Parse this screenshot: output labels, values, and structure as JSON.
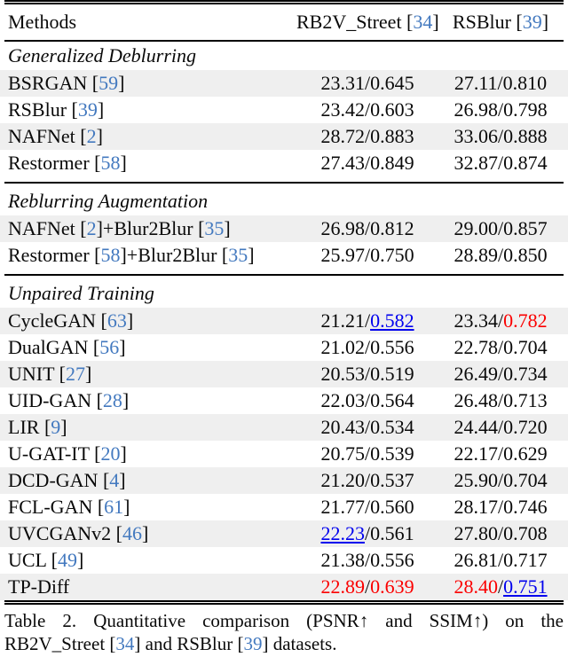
{
  "header": {
    "methods_label": "Methods",
    "dataset1_label": "RB2V_Street [34]",
    "dataset2_label": "RSBlur [39]"
  },
  "rows": [
    {
      "type": "section",
      "label": "Generalized Deblurring"
    },
    {
      "type": "data",
      "method": "BSRGAN [59]",
      "shaded": true,
      "rb2v": {
        "psnr": "23.31",
        "ssim": "0.645"
      },
      "rsblur": {
        "psnr": "27.11",
        "ssim": "0.810"
      }
    },
    {
      "type": "data",
      "method": "RSBlur [39]",
      "shaded": false,
      "rb2v": {
        "psnr": "23.42",
        "ssim": "0.603"
      },
      "rsblur": {
        "psnr": "26.98",
        "ssim": "0.798"
      }
    },
    {
      "type": "data",
      "method": "NAFNet [2]",
      "shaded": true,
      "rb2v": {
        "psnr": "28.72",
        "ssim": "0.883"
      },
      "rsblur": {
        "psnr": "33.06",
        "ssim": "0.888"
      }
    },
    {
      "type": "data",
      "method": "Restormer [58]",
      "shaded": false,
      "rb2v": {
        "psnr": "27.43",
        "ssim": "0.849"
      },
      "rsblur": {
        "psnr": "32.87",
        "ssim": "0.874"
      }
    },
    {
      "type": "rule"
    },
    {
      "type": "section",
      "label": "Reblurring Augmentation"
    },
    {
      "type": "data",
      "method": "NAFNet [2]+Blur2Blur [35]",
      "shaded": true,
      "rb2v": {
        "psnr": "26.98",
        "ssim": "0.812"
      },
      "rsblur": {
        "psnr": "29.00",
        "ssim": "0.857"
      }
    },
    {
      "type": "data",
      "method": "Restormer [58]+Blur2Blur [35]",
      "shaded": false,
      "rb2v": {
        "psnr": "25.97",
        "ssim": "0.750"
      },
      "rsblur": {
        "psnr": "28.89",
        "ssim": "0.850"
      }
    },
    {
      "type": "rule"
    },
    {
      "type": "section",
      "label": "Unpaired Training"
    },
    {
      "type": "data",
      "method": "CycleGAN [63]",
      "shaded": true,
      "rb2v": {
        "psnr": "21.21",
        "ssim": "0.582",
        "ssim_style": "blue"
      },
      "rsblur": {
        "psnr": "23.34",
        "ssim": "0.782",
        "ssim_style": "red"
      }
    },
    {
      "type": "data",
      "method": "DualGAN [56]",
      "shaded": false,
      "rb2v": {
        "psnr": "21.02",
        "ssim": "0.556"
      },
      "rsblur": {
        "psnr": "22.78",
        "ssim": "0.704"
      }
    },
    {
      "type": "data",
      "method": "UNIT [27]",
      "shaded": true,
      "rb2v": {
        "psnr": "20.53",
        "ssim": "0.519"
      },
      "rsblur": {
        "psnr": "26.49",
        "ssim": "0.734"
      }
    },
    {
      "type": "data",
      "method": "UID-GAN [28]",
      "shaded": false,
      "rb2v": {
        "psnr": "22.03",
        "ssim": "0.564"
      },
      "rsblur": {
        "psnr": "26.48",
        "ssim": "0.713"
      }
    },
    {
      "type": "data",
      "method": "LIR [9]",
      "shaded": true,
      "rb2v": {
        "psnr": "20.43",
        "ssim": "0.534"
      },
      "rsblur": {
        "psnr": "24.44",
        "ssim": "0.720"
      }
    },
    {
      "type": "data",
      "method": "U-GAT-IT [20]",
      "shaded": false,
      "rb2v": {
        "psnr": "20.75",
        "ssim": "0.539"
      },
      "rsblur": {
        "psnr": "22.17",
        "ssim": "0.629"
      }
    },
    {
      "type": "data",
      "method": "DCD-GAN [4]",
      "shaded": true,
      "rb2v": {
        "psnr": "21.20",
        "ssim": "0.537"
      },
      "rsblur": {
        "psnr": "25.90",
        "ssim": "0.704"
      }
    },
    {
      "type": "data",
      "method": "FCL-GAN [61]",
      "shaded": false,
      "rb2v": {
        "psnr": "21.77",
        "ssim": "0.560"
      },
      "rsblur": {
        "psnr": "28.17",
        "ssim": "0.746"
      }
    },
    {
      "type": "data",
      "method": "UVCGANv2 [46]",
      "shaded": true,
      "rb2v": {
        "psnr": "22.23",
        "psnr_style": "blue",
        "ssim": "0.561"
      },
      "rsblur": {
        "psnr": "27.80",
        "ssim": "0.708"
      }
    },
    {
      "type": "data",
      "method": "UCL [49]",
      "shaded": false,
      "rb2v": {
        "psnr": "21.38",
        "ssim": "0.556"
      },
      "rsblur": {
        "psnr": "26.81",
        "ssim": "0.717"
      }
    },
    {
      "type": "data",
      "method": "TP-Diff",
      "shaded": true,
      "rb2v": {
        "psnr": "22.89",
        "psnr_style": "red",
        "ssim": "0.639",
        "ssim_style": "red"
      },
      "rsblur": {
        "psnr": "28.40",
        "psnr_style": "red",
        "ssim": "0.751",
        "ssim_style": "blue"
      }
    }
  ],
  "caption": {
    "text": "Table 2.  Quantitative comparison (PSNR↑ and SSIM↑) on the RB2V_Street [34] and RSBlur [39] datasets."
  },
  "colors": {
    "citation_blue": "#4379bf",
    "best_value_red": "#fb0000",
    "second_best_blue": "#0000ee",
    "row_shade_gray": "#efefef",
    "rule_black": "#000000"
  }
}
